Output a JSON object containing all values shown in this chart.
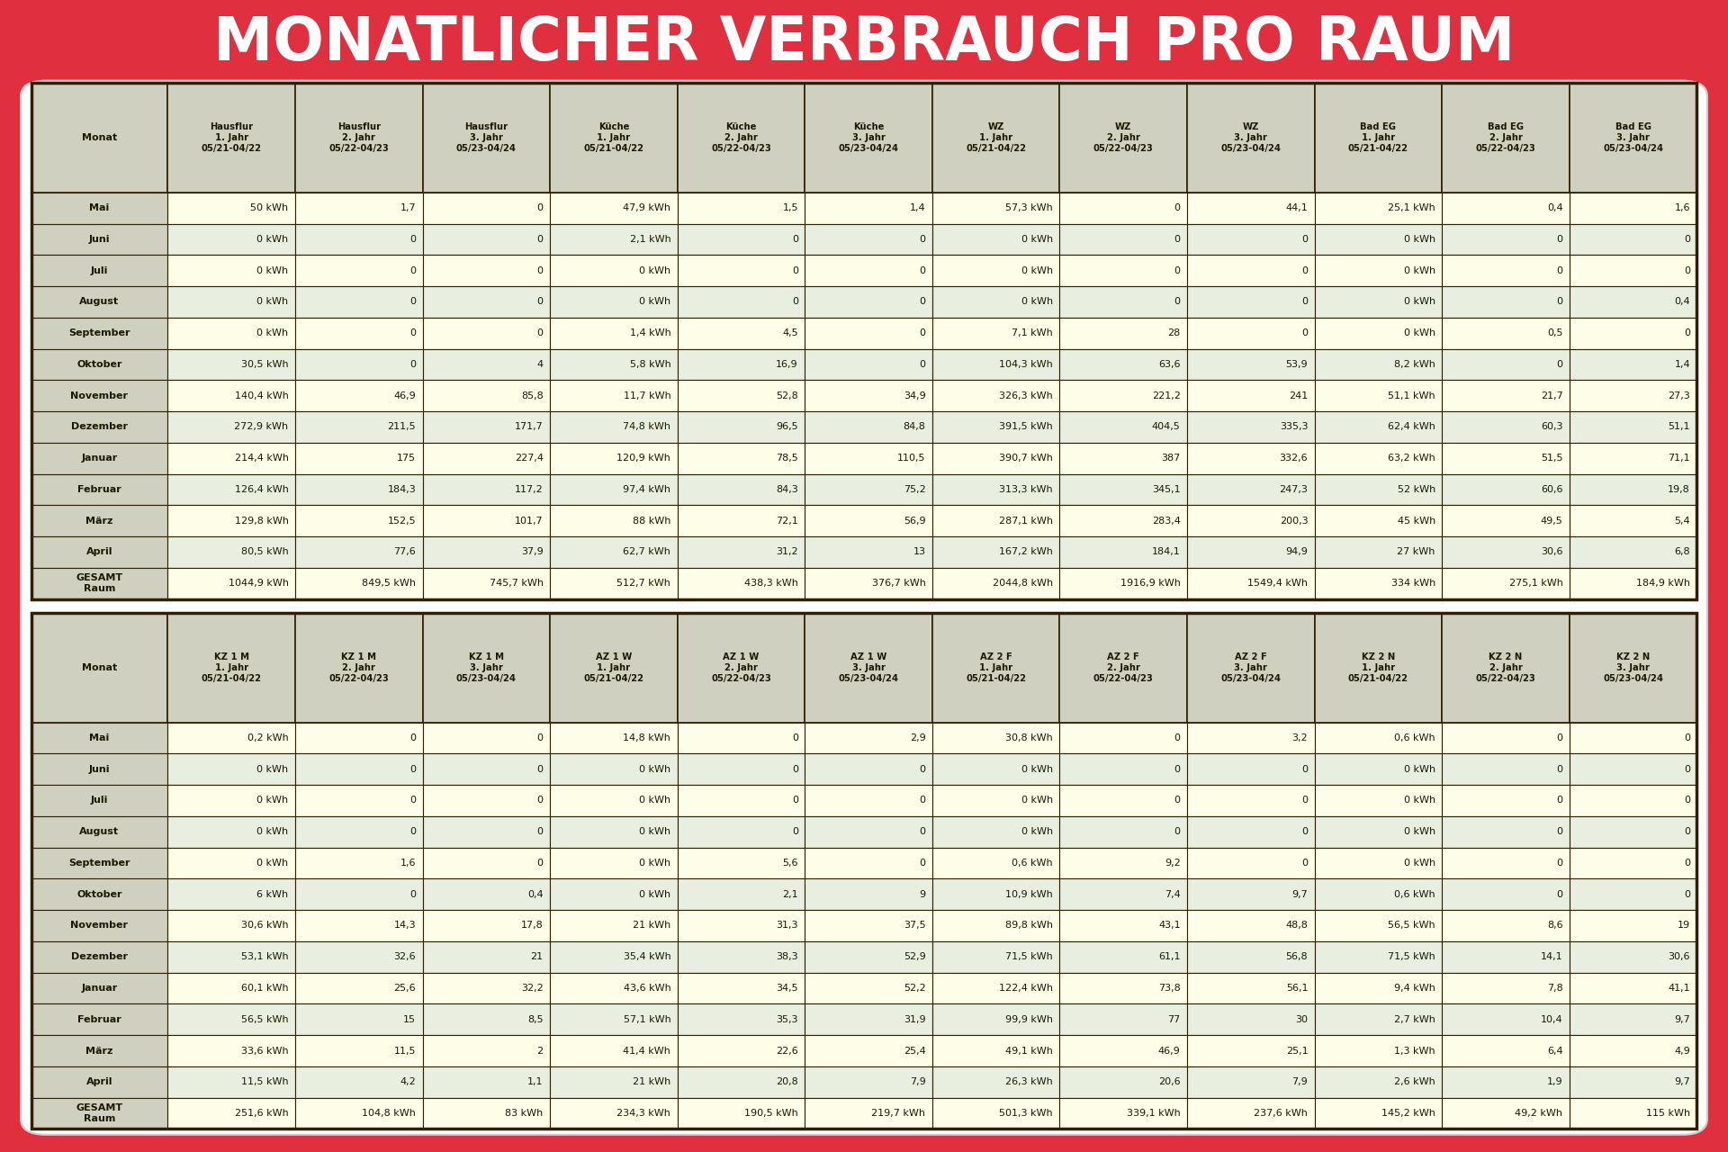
{
  "title": "MONATLICHER VERBRAUCH PRO RAUM",
  "outer_bg": "#E03040",
  "title_color": "#FFFFFF",
  "white_card_bg": "#FFFFFF",
  "header_bg": "#D0D0C0",
  "row_colors": [
    "#FEFEE8",
    "#E8EEE0"
  ],
  "total_row_bg": "#FEFEE8",
  "border_color": "#302000",
  "header_text_color": "#1A1A00",
  "month_col_bg": "#D0D0C0",
  "month_text_color": "#1A1A00",
  "data_text_color": "#1A1A00",
  "table1_col_headers": [
    "Monat",
    "Hausflur\n1. Jahr\n05/21-04/22",
    "Hausflur\n2. Jahr\n05/22-04/23",
    "Hausflur\n3. Jahr\n05/23-04/24",
    "Küche\n1. Jahr\n05/21-04/22",
    "Küche\n2. Jahr\n05/22-04/23",
    "Küche\n3. Jahr\n05/23-04/24",
    "WZ\n1. Jahr\n05/21-04/22",
    "WZ\n2. Jahr\n05/22-04/23",
    "WZ\n3. Jahr\n05/23-04/24",
    "Bad EG\n1. Jahr\n05/21-04/22",
    "Bad EG\n2. Jahr\n05/22-04/23",
    "Bad EG\n3. Jahr\n05/23-04/24"
  ],
  "table1_rows": [
    [
      "Mai",
      "50 kWh",
      "1,7",
      "0",
      "47,9 kWh",
      "1,5",
      "1,4",
      "57,3 kWh",
      "0",
      "44,1",
      "25,1 kWh",
      "0,4",
      "1,6"
    ],
    [
      "Juni",
      "0 kWh",
      "0",
      "0",
      "2,1 kWh",
      "0",
      "0",
      "0 kWh",
      "0",
      "0",
      "0 kWh",
      "0",
      "0"
    ],
    [
      "Juli",
      "0 kWh",
      "0",
      "0",
      "0 kWh",
      "0",
      "0",
      "0 kWh",
      "0",
      "0",
      "0 kWh",
      "0",
      "0"
    ],
    [
      "August",
      "0 kWh",
      "0",
      "0",
      "0 kWh",
      "0",
      "0",
      "0 kWh",
      "0",
      "0",
      "0 kWh",
      "0",
      "0,4"
    ],
    [
      "September",
      "0 kWh",
      "0",
      "0",
      "1,4 kWh",
      "4,5",
      "0",
      "7,1 kWh",
      "28",
      "0",
      "0 kWh",
      "0,5",
      "0"
    ],
    [
      "Oktober",
      "30,5 kWh",
      "0",
      "4",
      "5,8 kWh",
      "16,9",
      "0",
      "104,3 kWh",
      "63,6",
      "53,9",
      "8,2 kWh",
      "0",
      "1,4"
    ],
    [
      "November",
      "140,4 kWh",
      "46,9",
      "85,8",
      "11,7 kWh",
      "52,8",
      "34,9",
      "326,3 kWh",
      "221,2",
      "241",
      "51,1 kWh",
      "21,7",
      "27,3"
    ],
    [
      "Dezember",
      "272,9 kWh",
      "211,5",
      "171,7",
      "74,8 kWh",
      "96,5",
      "84,8",
      "391,5 kWh",
      "404,5",
      "335,3",
      "62,4 kWh",
      "60,3",
      "51,1"
    ],
    [
      "Januar",
      "214,4 kWh",
      "175",
      "227,4",
      "120,9 kWh",
      "78,5",
      "110,5",
      "390,7 kWh",
      "387",
      "332,6",
      "63,2 kWh",
      "51,5",
      "71,1"
    ],
    [
      "Februar",
      "126,4 kWh",
      "184,3",
      "117,2",
      "97,4 kWh",
      "84,3",
      "75,2",
      "313,3 kWh",
      "345,1",
      "247,3",
      "52 kWh",
      "60,6",
      "19,8"
    ],
    [
      "März",
      "129,8 kWh",
      "152,5",
      "101,7",
      "88 kWh",
      "72,1",
      "56,9",
      "287,1 kWh",
      "283,4",
      "200,3",
      "45 kWh",
      "49,5",
      "5,4"
    ],
    [
      "April",
      "80,5 kWh",
      "77,6",
      "37,9",
      "62,7 kWh",
      "31,2",
      "13",
      "167,2 kWh",
      "184,1",
      "94,9",
      "27 kWh",
      "30,6",
      "6,8"
    ],
    [
      "GESAMT\nRaum",
      "1044,9 kWh",
      "849,5 kWh",
      "745,7 kWh",
      "512,7 kWh",
      "438,3 kWh",
      "376,7 kWh",
      "2044,8 kWh",
      "1916,9 kWh",
      "1549,4 kWh",
      "334 kWh",
      "275,1 kWh",
      "184,9 kWh"
    ]
  ],
  "table2_col_headers": [
    "Monat",
    "KZ 1 M\n1. Jahr\n05/21-04/22",
    "KZ 1 M\n2. Jahr\n05/22-04/23",
    "KZ 1 M\n3. Jahr\n05/23-04/24",
    "AZ 1 W\n1. Jahr\n05/21-04/22",
    "AZ 1 W\n2. Jahr\n05/22-04/23",
    "AZ 1 W\n3. Jahr\n05/23-04/24",
    "AZ 2 F\n1. Jahr\n05/21-04/22",
    "AZ 2 F\n2. Jahr\n05/22-04/23",
    "AZ 2 F\n3. Jahr\n05/23-04/24",
    "KZ 2 N\n1. Jahr\n05/21-04/22",
    "KZ 2 N\n2. Jahr\n05/22-04/23",
    "KZ 2 N\n3. Jahr\n05/23-04/24"
  ],
  "table2_rows": [
    [
      "Mai",
      "0,2 kWh",
      "0",
      "0",
      "14,8 kWh",
      "0",
      "2,9",
      "30,8 kWh",
      "0",
      "3,2",
      "0,6 kWh",
      "0",
      "0"
    ],
    [
      "Juni",
      "0 kWh",
      "0",
      "0",
      "0 kWh",
      "0",
      "0",
      "0 kWh",
      "0",
      "0",
      "0 kWh",
      "0",
      "0"
    ],
    [
      "Juli",
      "0 kWh",
      "0",
      "0",
      "0 kWh",
      "0",
      "0",
      "0 kWh",
      "0",
      "0",
      "0 kWh",
      "0",
      "0"
    ],
    [
      "August",
      "0 kWh",
      "0",
      "0",
      "0 kWh",
      "0",
      "0",
      "0 kWh",
      "0",
      "0",
      "0 kWh",
      "0",
      "0"
    ],
    [
      "September",
      "0 kWh",
      "1,6",
      "0",
      "0 kWh",
      "5,6",
      "0",
      "0,6 kWh",
      "9,2",
      "0",
      "0 kWh",
      "0",
      "0"
    ],
    [
      "Oktober",
      "6 kWh",
      "0",
      "0,4",
      "0 kWh",
      "2,1",
      "9",
      "10,9 kWh",
      "7,4",
      "9,7",
      "0,6 kWh",
      "0",
      "0"
    ],
    [
      "November",
      "30,6 kWh",
      "14,3",
      "17,8",
      "21 kWh",
      "31,3",
      "37,5",
      "89,8 kWh",
      "43,1",
      "48,8",
      "56,5 kWh",
      "8,6",
      "19"
    ],
    [
      "Dezember",
      "53,1 kWh",
      "32,6",
      "21",
      "35,4 kWh",
      "38,3",
      "52,9",
      "71,5 kWh",
      "61,1",
      "56,8",
      "71,5 kWh",
      "14,1",
      "30,6"
    ],
    [
      "Januar",
      "60,1 kWh",
      "25,6",
      "32,2",
      "43,6 kWh",
      "34,5",
      "52,2",
      "122,4 kWh",
      "73,8",
      "56,1",
      "9,4 kWh",
      "7,8",
      "41,1"
    ],
    [
      "Februar",
      "56,5 kWh",
      "15",
      "8,5",
      "57,1 kWh",
      "35,3",
      "31,9",
      "99,9 kWh",
      "77",
      "30",
      "2,7 kWh",
      "10,4",
      "9,7"
    ],
    [
      "März",
      "33,6 kWh",
      "11,5",
      "2",
      "41,4 kWh",
      "22,6",
      "25,4",
      "49,1 kWh",
      "46,9",
      "25,1",
      "1,3 kWh",
      "6,4",
      "4,9"
    ],
    [
      "April",
      "11,5 kWh",
      "4,2",
      "1,1",
      "21 kWh",
      "20,8",
      "7,9",
      "26,3 kWh",
      "20,6",
      "7,9",
      "2,6 kWh",
      "1,9",
      "9,7"
    ],
    [
      "GESAMT\nRaum",
      "251,6 kWh",
      "104,8 kWh",
      "83 kWh",
      "234,3 kWh",
      "190,5 kWh",
      "219,7 kWh",
      "501,3 kWh",
      "339,1 kWh",
      "237,6 kWh",
      "145,2 kWh",
      "49,2 kWh",
      "115 kWh"
    ]
  ]
}
